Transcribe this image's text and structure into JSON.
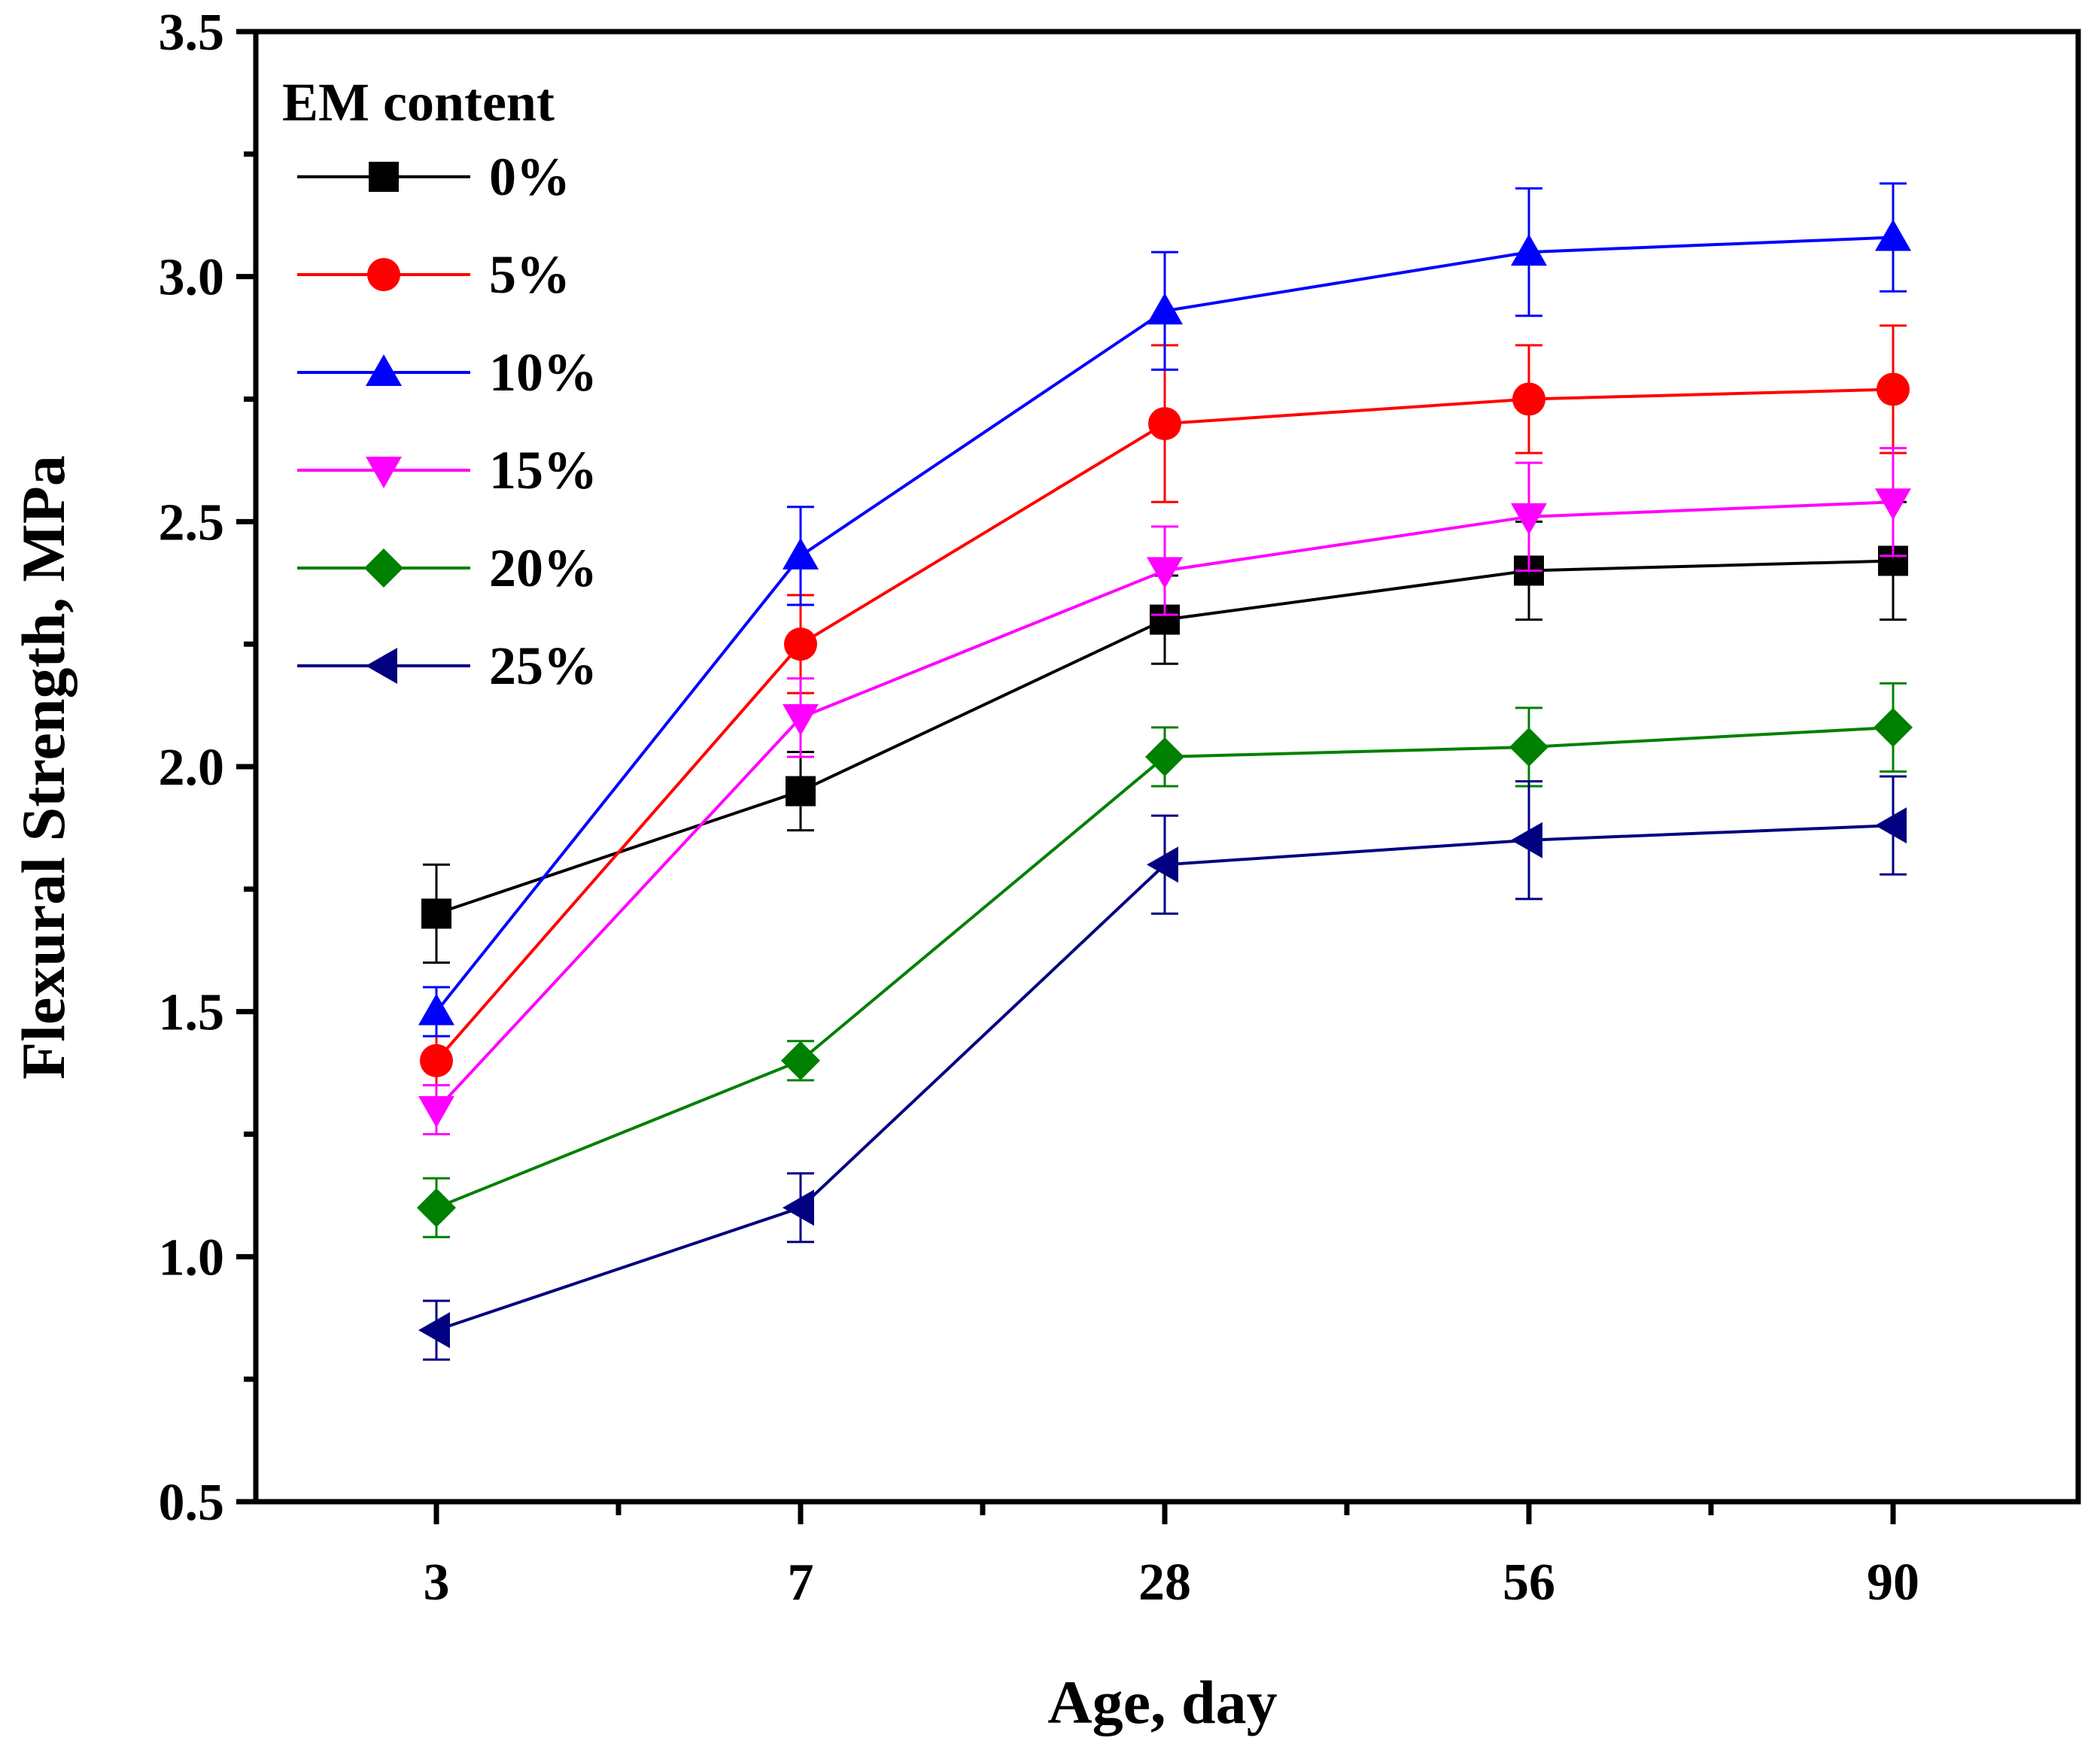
{
  "chart_data": {
    "type": "line",
    "title": "",
    "xlabel": "Age, day",
    "ylabel": "Flexural Strength, MPa",
    "categories": [
      "3",
      "7",
      "28",
      "56",
      "90"
    ],
    "ylim": [
      0.5,
      3.5
    ],
    "yticks": [
      "0.5",
      "1.0",
      "1.5",
      "2.0",
      "2.5",
      "3.0",
      "3.5"
    ],
    "grid": false,
    "legend": {
      "title": "EM content",
      "position": "top-left"
    },
    "series": [
      {
        "name": "0%",
        "color": "#000000",
        "marker": "square",
        "values": [
          1.7,
          1.95,
          2.3,
          2.4,
          2.42
        ],
        "errors": [
          0.1,
          0.08,
          0.09,
          0.1,
          0.12
        ]
      },
      {
        "name": "5%",
        "color": "#ff0000",
        "marker": "circle",
        "values": [
          1.4,
          2.25,
          2.7,
          2.75,
          2.77
        ],
        "errors": [
          0.08,
          0.1,
          0.16,
          0.11,
          0.13
        ]
      },
      {
        "name": "10%",
        "color": "#0000ff",
        "marker": "triangle-up",
        "values": [
          1.5,
          2.43,
          2.93,
          3.05,
          3.08
        ],
        "errors": [
          0.05,
          0.1,
          0.12,
          0.13,
          0.11
        ]
      },
      {
        "name": "15%",
        "color": "#ff00ff",
        "marker": "triangle-down",
        "values": [
          1.3,
          2.1,
          2.4,
          2.51,
          2.54
        ],
        "errors": [
          0.05,
          0.08,
          0.09,
          0.11,
          0.11
        ]
      },
      {
        "name": "20%",
        "color": "#008000",
        "marker": "diamond",
        "values": [
          1.1,
          1.4,
          2.02,
          2.04,
          2.08
        ],
        "errors": [
          0.06,
          0.04,
          0.06,
          0.08,
          0.09
        ]
      },
      {
        "name": "25%",
        "color": "#000080",
        "marker": "triangle-left",
        "values": [
          0.85,
          1.1,
          1.8,
          1.85,
          1.88
        ],
        "errors": [
          0.06,
          0.07,
          0.1,
          0.12,
          0.1
        ]
      }
    ]
  }
}
